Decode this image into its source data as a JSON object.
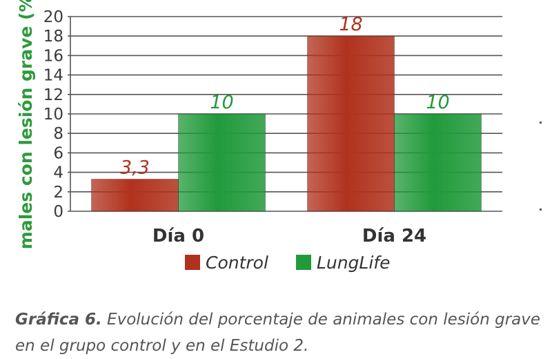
{
  "chart_data": {
    "type": "bar",
    "categories": [
      "Día 0",
      "Día 24"
    ],
    "series": [
      {
        "name": "Control",
        "values": [
          3.3,
          18
        ],
        "labels": [
          "3,3",
          "18"
        ],
        "color": "#b0321d"
      },
      {
        "name": "LungLife",
        "values": [
          10,
          10
        ],
        "labels": [
          "10",
          "10"
        ],
        "color": "#219a3b"
      }
    ],
    "ylabel": "Animales con lesión grave (%)",
    "ylim": [
      0,
      20
    ],
    "yticks": [
      0,
      2,
      4,
      6,
      8,
      10,
      12,
      14,
      16,
      18,
      20
    ],
    "grid": true,
    "legend_position": "bottom"
  },
  "caption": {
    "label": "Gráfica 6.",
    "text": " Evolución del porcentaje de animales con lesión grave",
    "text_line2": "en el grupo control y en el Estudio 2."
  }
}
